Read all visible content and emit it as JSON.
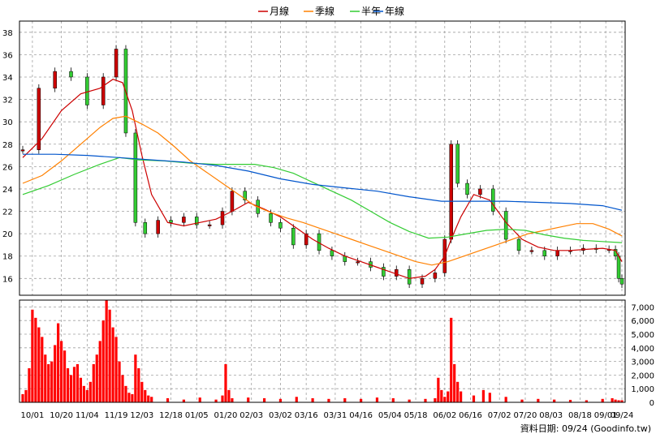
{
  "chart_data": {
    "type": "line",
    "legend": [
      {
        "name": "月線",
        "color": "#cc0000"
      },
      {
        "name": "季線",
        "color": "#ff8000"
      },
      {
        "name": "半年",
        "color": "#33cc33"
      },
      {
        "name": "年線",
        "color": "#0055cc"
      }
    ],
    "colors": {
      "up": "#cc0000",
      "down": "#33cc33",
      "volume": "#ff0000",
      "grid": "#a0a0a0"
    },
    "price_axis": {
      "ylim": [
        14.5,
        39
      ],
      "ticks": [
        16,
        18,
        20,
        22,
        24,
        26,
        28,
        30,
        32,
        34,
        36,
        38
      ]
    },
    "volume_axis": {
      "ylim": [
        0,
        7500
      ],
      "ticks": [
        "0",
        "1,000",
        "2,000",
        "3,000",
        "4,000",
        "5,000",
        "6,000",
        "7,000"
      ]
    },
    "x_axis": {
      "range": [
        0,
        186
      ],
      "ticks": [
        {
          "pos": 3,
          "label": "10/01"
        },
        {
          "pos": 12,
          "label": "10/20"
        },
        {
          "pos": 20,
          "label": "11/04"
        },
        {
          "pos": 29,
          "label": "11/19"
        },
        {
          "pos": 37,
          "label": "12/03"
        },
        {
          "pos": 46,
          "label": "12/18"
        },
        {
          "pos": 54,
          "label": "01/05"
        },
        {
          "pos": 63,
          "label": "01/20"
        },
        {
          "pos": 71,
          "label": "02/03"
        },
        {
          "pos": 80,
          "label": "03/02"
        },
        {
          "pos": 88,
          "label": "03/16"
        },
        {
          "pos": 97,
          "label": "03/31"
        },
        {
          "pos": 105,
          "label": "04/16"
        },
        {
          "pos": 114,
          "label": "05/04"
        },
        {
          "pos": 122,
          "label": "05/18"
        },
        {
          "pos": 131,
          "label": "06/02"
        },
        {
          "pos": 139,
          "label": "06/16"
        },
        {
          "pos": 148,
          "label": "07/02"
        },
        {
          "pos": 156,
          "label": "07/20"
        },
        {
          "pos": 164,
          "label": "08/03"
        },
        {
          "pos": 173,
          "label": "08/18"
        },
        {
          "pos": 181,
          "label": "09/01"
        },
        {
          "pos": 186,
          "label": "09/24"
        }
      ]
    },
    "price_points": [
      [
        0,
        27.5
      ],
      [
        5,
        33.0
      ],
      [
        10,
        34.5
      ],
      [
        15,
        34.0
      ],
      [
        20,
        31.5
      ],
      [
        25,
        34.0
      ],
      [
        29,
        36.5
      ],
      [
        32,
        29.0
      ],
      [
        35,
        21.0
      ],
      [
        38,
        20.0
      ],
      [
        42,
        21.2
      ],
      [
        46,
        21.0
      ],
      [
        50,
        21.5
      ],
      [
        54,
        20.8
      ],
      [
        58,
        20.8
      ],
      [
        62,
        22.0
      ],
      [
        65,
        23.8
      ],
      [
        69,
        23.0
      ],
      [
        73,
        21.8
      ],
      [
        77,
        21.0
      ],
      [
        80,
        20.5
      ],
      [
        84,
        19.0
      ],
      [
        88,
        20.0
      ],
      [
        92,
        18.5
      ],
      [
        96,
        18.0
      ],
      [
        100,
        17.5
      ],
      [
        104,
        17.5
      ],
      [
        108,
        17.0
      ],
      [
        112,
        16.2
      ],
      [
        116,
        16.8
      ],
      [
        120,
        15.5
      ],
      [
        124,
        16.0
      ],
      [
        128,
        16.5
      ],
      [
        131,
        19.5
      ],
      [
        133,
        28.0
      ],
      [
        135,
        24.5
      ],
      [
        138,
        23.5
      ],
      [
        142,
        24.0
      ],
      [
        146,
        22.0
      ],
      [
        150,
        19.5
      ],
      [
        154,
        18.5
      ],
      [
        158,
        18.5
      ],
      [
        162,
        18.0
      ],
      [
        166,
        18.5
      ],
      [
        170,
        18.5
      ],
      [
        174,
        18.7
      ],
      [
        178,
        18.6
      ],
      [
        182,
        18.6
      ],
      [
        184,
        18.0
      ],
      [
        185,
        16.0
      ],
      [
        186,
        15.5
      ]
    ],
    "series": [
      {
        "name": "月線",
        "x": [
          0,
          6,
          12,
          18,
          24,
          28,
          31,
          34,
          37,
          40,
          45,
          50,
          55,
          60,
          65,
          70,
          75,
          80,
          85,
          90,
          95,
          100,
          105,
          110,
          115,
          120,
          125,
          128,
          131,
          133,
          136,
          140,
          145,
          150,
          155,
          160,
          165,
          170,
          175,
          180,
          184,
          186
        ],
        "values": [
          26.8,
          28.5,
          31.0,
          32.5,
          33.0,
          33.8,
          33.5,
          31.0,
          27.0,
          23.5,
          21.0,
          20.7,
          21.0,
          21.3,
          22.0,
          22.8,
          22.2,
          21.5,
          20.5,
          19.5,
          18.7,
          18.0,
          17.5,
          17.0,
          16.5,
          16.0,
          16.2,
          16.8,
          18.0,
          19.5,
          21.5,
          23.5,
          23.0,
          21.0,
          19.5,
          18.8,
          18.5,
          18.5,
          18.6,
          18.7,
          18.5,
          17.5
        ]
      },
      {
        "name": "季線",
        "x": [
          0,
          6,
          12,
          18,
          24,
          28,
          32,
          37,
          42,
          47,
          52,
          57,
          62,
          67,
          72,
          77,
          82,
          87,
          92,
          97,
          102,
          107,
          112,
          117,
          122,
          127,
          132,
          137,
          142,
          147,
          152,
          157,
          162,
          167,
          172,
          177,
          182,
          186
        ],
        "values": [
          24.5,
          25.2,
          26.5,
          28.0,
          29.5,
          30.3,
          30.5,
          29.8,
          29.0,
          27.8,
          26.5,
          25.5,
          24.5,
          23.5,
          22.5,
          21.9,
          21.4,
          21.0,
          20.5,
          20.0,
          19.5,
          19.0,
          18.5,
          18.0,
          17.5,
          17.2,
          17.5,
          18.0,
          18.5,
          19.0,
          19.5,
          20.0,
          20.3,
          20.6,
          20.9,
          20.9,
          20.4,
          19.8
        ]
      },
      {
        "name": "半年",
        "x": [
          0,
          8,
          16,
          24,
          30,
          36,
          44,
          52,
          60,
          66,
          72,
          78,
          84,
          90,
          96,
          102,
          108,
          114,
          120,
          126,
          132,
          138,
          144,
          150,
          156,
          162,
          168,
          174,
          180,
          186
        ],
        "values": [
          23.5,
          24.3,
          25.3,
          26.2,
          26.8,
          26.6,
          26.5,
          26.3,
          26.2,
          26.2,
          26.2,
          25.9,
          25.4,
          24.6,
          23.8,
          23.0,
          22.0,
          21.0,
          20.2,
          19.6,
          19.7,
          20.0,
          20.3,
          20.4,
          20.3,
          19.9,
          19.6,
          19.4,
          19.3,
          19.2
        ]
      },
      {
        "name": "年線",
        "x": [
          0,
          10,
          20,
          30,
          40,
          50,
          60,
          70,
          80,
          90,
          100,
          110,
          120,
          130,
          140,
          150,
          160,
          170,
          180,
          186
        ],
        "values": [
          27.1,
          27.1,
          27.0,
          26.8,
          26.6,
          26.4,
          26.1,
          25.6,
          24.9,
          24.4,
          24.1,
          23.8,
          23.3,
          22.9,
          22.9,
          22.9,
          22.8,
          22.7,
          22.5,
          22.1
        ]
      }
    ],
    "volume": {
      "x": [
        0,
        1,
        2,
        3,
        4,
        5,
        6,
        7,
        8,
        9,
        10,
        11,
        12,
        13,
        14,
        15,
        16,
        17,
        18,
        19,
        20,
        21,
        22,
        23,
        24,
        25,
        26,
        27,
        28,
        29,
        30,
        31,
        32,
        33,
        34,
        35,
        36,
        37,
        38,
        39,
        40,
        45,
        50,
        55,
        60,
        62,
        63,
        64,
        65,
        70,
        75,
        80,
        85,
        90,
        95,
        100,
        105,
        110,
        115,
        120,
        125,
        128,
        129,
        130,
        131,
        132,
        133,
        134,
        135,
        136,
        140,
        143,
        145,
        150,
        155,
        160,
        165,
        170,
        175,
        180,
        183,
        184,
        185,
        186
      ],
      "values": [
        600,
        900,
        2500,
        6800,
        6200,
        5500,
        4800,
        3500,
        2800,
        3000,
        4200,
        5800,
        4500,
        3800,
        2500,
        2000,
        2600,
        2800,
        1800,
        1200,
        900,
        1500,
        2800,
        3500,
        4500,
        6000,
        7500,
        6800,
        5500,
        4800,
        3000,
        2000,
        1200,
        700,
        600,
        3500,
        2500,
        1500,
        900,
        500,
        400,
        300,
        200,
        350,
        200,
        500,
        2800,
        900,
        300,
        350,
        300,
        250,
        400,
        300,
        250,
        300,
        250,
        350,
        300,
        200,
        250,
        300,
        1800,
        900,
        400,
        800,
        6200,
        2800,
        1500,
        800,
        500,
        900,
        700,
        400,
        200,
        250,
        200,
        180,
        150,
        250,
        300,
        200,
        150,
        150
      ]
    }
  },
  "footer": {
    "update_text": "資料日期: 09/24 (Goodinfo.tw)"
  }
}
